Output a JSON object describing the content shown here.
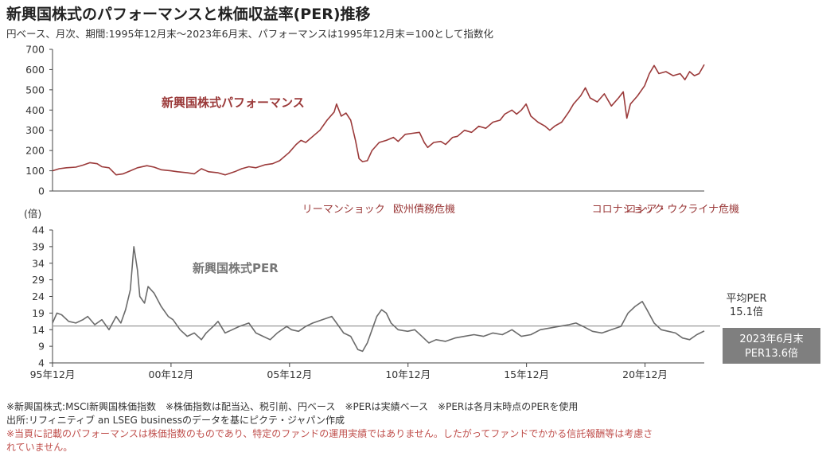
{
  "title": "新興国株式のパフォーマンスと株価収益率(PER)推移",
  "subtitle": "円ベース、月次、期間:1995年12月末〜2023年6月末、パフォーマンスは1995年12月末＝100として指数化",
  "colors": {
    "performance": "#9b3a3a",
    "per": "#6b6b6b",
    "axis": "#444444",
    "box": "#7f7f7f"
  },
  "chart_data": [
    {
      "type": "line",
      "series": [
        {
          "name": "新興国株式パフォーマンス",
          "color": "#9b3a3a"
        }
      ],
      "ylim": [
        0,
        700
      ],
      "yticks": [
        0,
        100,
        200,
        300,
        400,
        500,
        600,
        700
      ],
      "x_range": [
        1995.917,
        2023.417
      ],
      "annotations": [
        {
          "label": "リーマンショック",
          "x": 2008.2
        },
        {
          "label": "欧州債務危機",
          "x": 2011.6
        },
        {
          "label": "コロナショック",
          "x": 2020.2
        },
        {
          "label": "ロシア・ウクライナ危機",
          "x": 2022.5
        }
      ],
      "points": [
        [
          1995.917,
          100
        ],
        [
          1996.2,
          110
        ],
        [
          1996.5,
          115
        ],
        [
          1996.9,
          118
        ],
        [
          1997.2,
          128
        ],
        [
          1997.5,
          140
        ],
        [
          1997.8,
          135
        ],
        [
          1998.0,
          120
        ],
        [
          1998.3,
          115
        ],
        [
          1998.6,
          80
        ],
        [
          1998.9,
          85
        ],
        [
          1999.2,
          100
        ],
        [
          1999.5,
          115
        ],
        [
          1999.9,
          125
        ],
        [
          2000.2,
          118
        ],
        [
          2000.5,
          105
        ],
        [
          2000.9,
          100
        ],
        [
          2001.2,
          95
        ],
        [
          2001.6,
          90
        ],
        [
          2001.9,
          85
        ],
        [
          2002.2,
          110
        ],
        [
          2002.5,
          95
        ],
        [
          2002.9,
          90
        ],
        [
          2003.2,
          80
        ],
        [
          2003.6,
          95
        ],
        [
          2003.9,
          110
        ],
        [
          2004.2,
          120
        ],
        [
          2004.5,
          115
        ],
        [
          2004.9,
          130
        ],
        [
          2005.2,
          135
        ],
        [
          2005.5,
          150
        ],
        [
          2005.9,
          190
        ],
        [
          2006.2,
          230
        ],
        [
          2006.4,
          250
        ],
        [
          2006.6,
          240
        ],
        [
          2006.9,
          270
        ],
        [
          2007.2,
          300
        ],
        [
          2007.5,
          350
        ],
        [
          2007.8,
          390
        ],
        [
          2007.9,
          430
        ],
        [
          2008.1,
          370
        ],
        [
          2008.3,
          385
        ],
        [
          2008.5,
          350
        ],
        [
          2008.7,
          250
        ],
        [
          2008.85,
          160
        ],
        [
          2009.0,
          145
        ],
        [
          2009.2,
          150
        ],
        [
          2009.4,
          200
        ],
        [
          2009.7,
          240
        ],
        [
          2010.0,
          250
        ],
        [
          2010.3,
          265
        ],
        [
          2010.5,
          245
        ],
        [
          2010.8,
          280
        ],
        [
          2011.1,
          285
        ],
        [
          2011.4,
          290
        ],
        [
          2011.6,
          240
        ],
        [
          2011.75,
          215
        ],
        [
          2012.0,
          240
        ],
        [
          2012.3,
          245
        ],
        [
          2012.5,
          230
        ],
        [
          2012.8,
          265
        ],
        [
          2013.0,
          270
        ],
        [
          2013.3,
          300
        ],
        [
          2013.6,
          290
        ],
        [
          2013.9,
          320
        ],
        [
          2014.2,
          310
        ],
        [
          2014.5,
          340
        ],
        [
          2014.8,
          350
        ],
        [
          2015.0,
          380
        ],
        [
          2015.3,
          400
        ],
        [
          2015.5,
          380
        ],
        [
          2015.7,
          400
        ],
        [
          2015.9,
          430
        ],
        [
          2016.1,
          370
        ],
        [
          2016.4,
          340
        ],
        [
          2016.7,
          320
        ],
        [
          2016.9,
          300
        ],
        [
          2017.1,
          320
        ],
        [
          2017.4,
          340
        ],
        [
          2017.7,
          390
        ],
        [
          2017.9,
          430
        ],
        [
          2018.2,
          470
        ],
        [
          2018.4,
          510
        ],
        [
          2018.6,
          460
        ],
        [
          2018.9,
          440
        ],
        [
          2019.2,
          480
        ],
        [
          2019.5,
          420
        ],
        [
          2019.8,
          460
        ],
        [
          2020.0,
          490
        ],
        [
          2020.15,
          360
        ],
        [
          2020.3,
          430
        ],
        [
          2020.6,
          470
        ],
        [
          2020.9,
          520
        ],
        [
          2021.1,
          580
        ],
        [
          2021.3,
          620
        ],
        [
          2021.5,
          580
        ],
        [
          2021.8,
          590
        ],
        [
          2022.1,
          570
        ],
        [
          2022.4,
          580
        ],
        [
          2022.6,
          550
        ],
        [
          2022.8,
          590
        ],
        [
          2023.0,
          570
        ],
        [
          2023.2,
          580
        ],
        [
          2023.417,
          625
        ]
      ]
    },
    {
      "type": "line",
      "series": [
        {
          "name": "新興国株式PER",
          "color": "#6b6b6b"
        }
      ],
      "ylabel": "(倍)",
      "ylim": [
        4,
        44
      ],
      "yticks": [
        4,
        9,
        14,
        19,
        24,
        29,
        34,
        39,
        44
      ],
      "x_range": [
        1995.917,
        2023.417
      ],
      "xticks": [
        {
          "label": "95年12月",
          "x": 1995.917
        },
        {
          "label": "00年12月",
          "x": 2000.917
        },
        {
          "label": "05年12月",
          "x": 2005.917
        },
        {
          "label": "10年12月",
          "x": 2010.917
        },
        {
          "label": "15年12月",
          "x": 2015.917
        },
        {
          "label": "20年12月",
          "x": 2020.917
        }
      ],
      "average": {
        "value": 15.1,
        "label_line1": "平均PER",
        "label_line2": "15.1倍"
      },
      "latest": {
        "label_line1": "2023年6月末",
        "label_line2": "PER13.6倍",
        "value": 13.6
      },
      "points": [
        [
          1995.917,
          16
        ],
        [
          1996.1,
          19
        ],
        [
          1996.3,
          18.5
        ],
        [
          1996.6,
          16.5
        ],
        [
          1996.9,
          16
        ],
        [
          1997.2,
          17
        ],
        [
          1997.4,
          18
        ],
        [
          1997.7,
          15.5
        ],
        [
          1998.0,
          17
        ],
        [
          1998.3,
          14
        ],
        [
          1998.6,
          18
        ],
        [
          1998.8,
          16
        ],
        [
          1999.0,
          20
        ],
        [
          1999.2,
          26
        ],
        [
          1999.35,
          39
        ],
        [
          1999.5,
          32
        ],
        [
          1999.6,
          24
        ],
        [
          1999.8,
          22
        ],
        [
          1999.95,
          27
        ],
        [
          2000.2,
          25
        ],
        [
          2000.5,
          21
        ],
        [
          2000.8,
          18
        ],
        [
          2001.0,
          17
        ],
        [
          2001.3,
          14
        ],
        [
          2001.6,
          12
        ],
        [
          2001.9,
          13
        ],
        [
          2002.2,
          11
        ],
        [
          2002.4,
          13
        ],
        [
          2002.7,
          15
        ],
        [
          2002.9,
          16.5
        ],
        [
          2003.2,
          13
        ],
        [
          2003.5,
          14
        ],
        [
          2003.8,
          15
        ],
        [
          2004.2,
          16
        ],
        [
          2004.5,
          13
        ],
        [
          2004.8,
          12
        ],
        [
          2005.1,
          11
        ],
        [
          2005.4,
          13
        ],
        [
          2005.8,
          15
        ],
        [
          2006.0,
          14
        ],
        [
          2006.3,
          13.5
        ],
        [
          2006.6,
          15
        ],
        [
          2006.9,
          16
        ],
        [
          2007.3,
          17
        ],
        [
          2007.7,
          18
        ],
        [
          2007.9,
          16
        ],
        [
          2008.2,
          13
        ],
        [
          2008.5,
          12
        ],
        [
          2008.8,
          8
        ],
        [
          2009.0,
          7.5
        ],
        [
          2009.2,
          10
        ],
        [
          2009.4,
          14
        ],
        [
          2009.6,
          18
        ],
        [
          2009.8,
          20
        ],
        [
          2010.0,
          19
        ],
        [
          2010.2,
          16
        ],
        [
          2010.5,
          14
        ],
        [
          2010.9,
          13.5
        ],
        [
          2011.2,
          14
        ],
        [
          2011.5,
          12
        ],
        [
          2011.8,
          10
        ],
        [
          2012.1,
          11
        ],
        [
          2012.5,
          10.5
        ],
        [
          2012.9,
          11.5
        ],
        [
          2013.3,
          12
        ],
        [
          2013.7,
          12.5
        ],
        [
          2014.1,
          12
        ],
        [
          2014.5,
          13
        ],
        [
          2014.9,
          12.5
        ],
        [
          2015.3,
          14
        ],
        [
          2015.7,
          12
        ],
        [
          2016.1,
          12.5
        ],
        [
          2016.5,
          14
        ],
        [
          2016.9,
          14.5
        ],
        [
          2017.3,
          15
        ],
        [
          2017.7,
          15.5
        ],
        [
          2018.0,
          16
        ],
        [
          2018.3,
          15
        ],
        [
          2018.7,
          13.5
        ],
        [
          2019.1,
          13
        ],
        [
          2019.5,
          14
        ],
        [
          2019.9,
          15
        ],
        [
          2020.2,
          19
        ],
        [
          2020.5,
          21
        ],
        [
          2020.8,
          22.5
        ],
        [
          2021.0,
          20
        ],
        [
          2021.3,
          16
        ],
        [
          2021.6,
          14
        ],
        [
          2021.9,
          13.5
        ],
        [
          2022.2,
          13
        ],
        [
          2022.5,
          11.5
        ],
        [
          2022.8,
          11
        ],
        [
          2023.1,
          12.5
        ],
        [
          2023.417,
          13.6
        ]
      ]
    }
  ],
  "chart_labels": {
    "performance": "新興国株式パフォーマンス",
    "per": "新興国株式PER"
  },
  "notes": {
    "line1": "※新興国株式:MSCI新興国株価指数　※株価指数は配当込、税引前、円ベース　※PERは実績ベース　※PERは各月末時点のPERを使用",
    "line2": "出所:リフィニティブ an LSEG businessのデータを基にピクテ・ジャパン作成",
    "line3": "※当頁に記載のパフォーマンスは株価指数のものであり、特定のファンドの運用実績ではありません。したがってファンドでかかる信託報酬等は考慮さ",
    "line4": "れていません。"
  }
}
